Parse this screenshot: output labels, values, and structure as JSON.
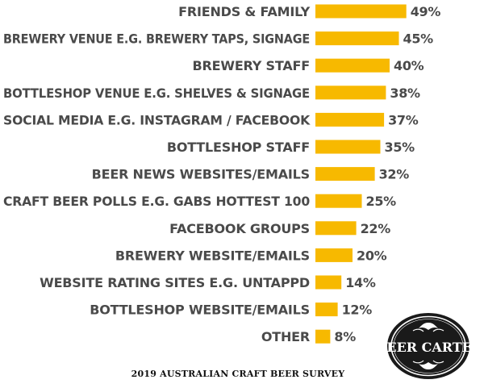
{
  "chart_data": {
    "type": "bar",
    "orientation": "horizontal",
    "categories": [
      "FRIENDS & FAMILY",
      "BREWERY VENUE E.G. BREWERY TAPS, SIGNAGE",
      "BREWERY STAFF",
      "BOTTLESHOP VENUE E.G. SHELVES & SIGNAGE",
      "SOCIAL MEDIA E.G. INSTAGRAM / FACEBOOK",
      "BOTTLESHOP STAFF",
      "BEER NEWS WEBSITES/EMAILS",
      "CRAFT BEER POLLS E.G. GABS HOTTEST 100",
      "FACEBOOK GROUPS",
      "BREWERY WEBSITE/EMAILS",
      "WEBSITE RATING SITES E.G. UNTAPPD",
      "BOTTLESHOP WEBSITE/EMAILS",
      "OTHER"
    ],
    "values": [
      49,
      45,
      40,
      38,
      37,
      35,
      32,
      25,
      22,
      20,
      14,
      12,
      8
    ],
    "value_labels": [
      "49%",
      "45%",
      "40%",
      "38%",
      "37%",
      "35%",
      "32%",
      "25%",
      "22%",
      "20%",
      "14%",
      "12%",
      "8%"
    ],
    "unit": "%",
    "bar_color": "#f7b900",
    "label_color": "#4a4a4a",
    "grid": false,
    "legend": "none"
  },
  "footer": {
    "text": "2019 AUSTRALIAN CRAFT BEER SURVEY"
  },
  "logo": {
    "text": "BEER CARTEL",
    "bg_color": "#1a1a1a",
    "text_color": "#ffffff"
  }
}
